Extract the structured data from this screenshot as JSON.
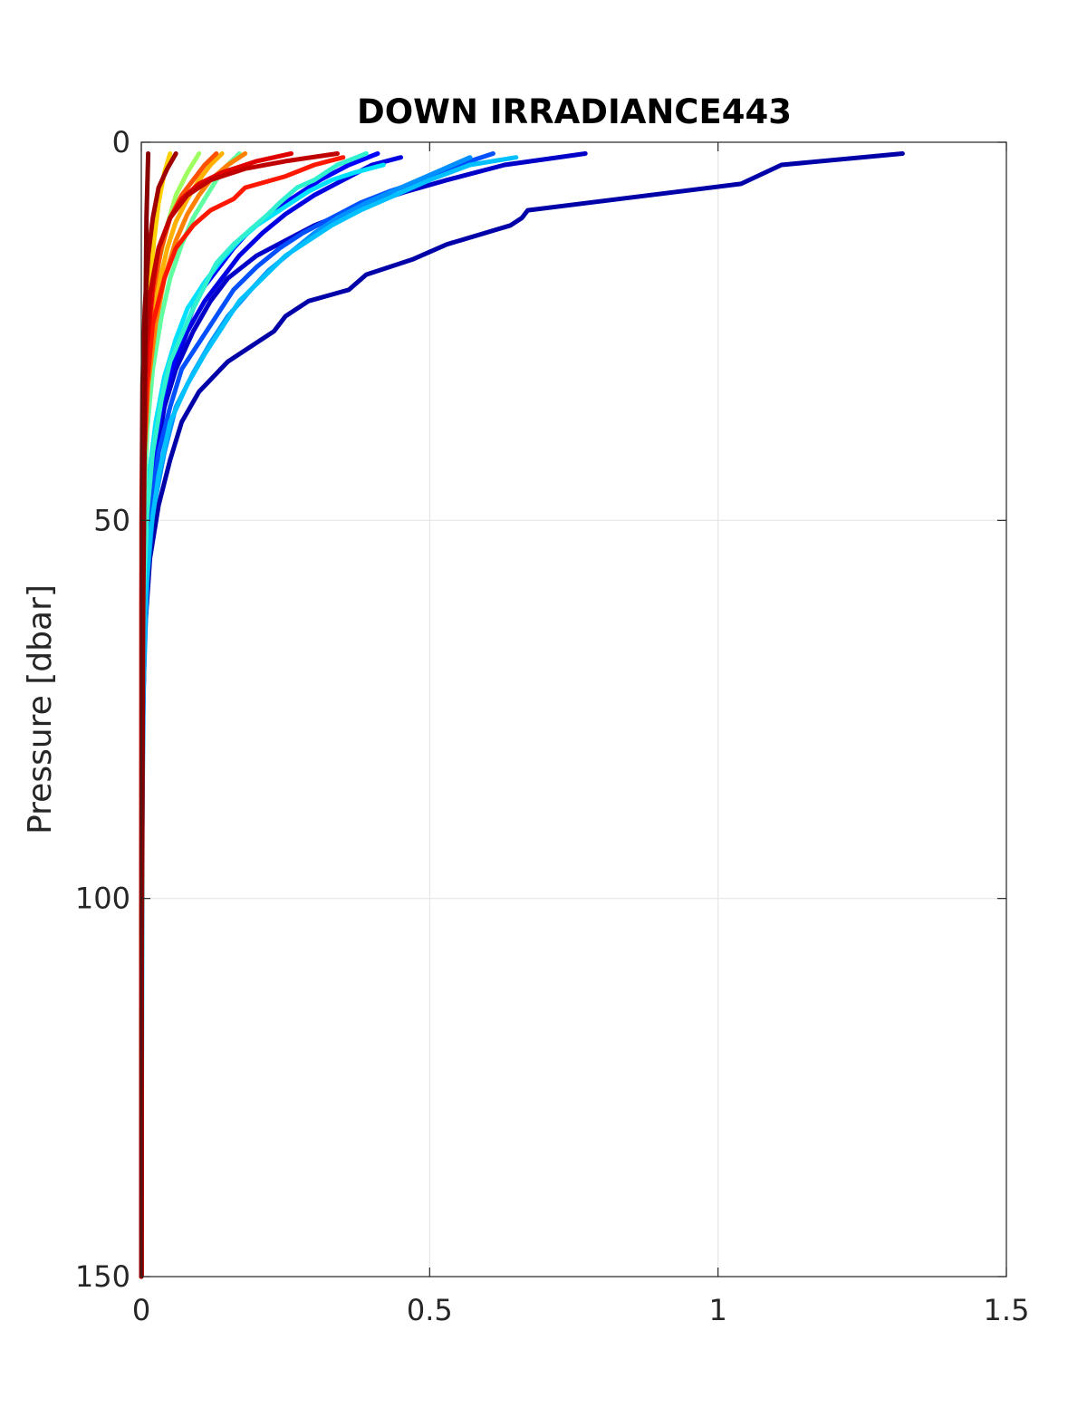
{
  "chart_data": {
    "type": "line",
    "title": "DOWN IRRADIANCE443",
    "xlabel": "",
    "ylabel": "Pressure [dbar]",
    "xlim": [
      0,
      1.5
    ],
    "ylim": [
      0,
      150
    ],
    "y_reversed": true,
    "grid": true,
    "xticks": [
      "0",
      "0.5",
      "1",
      "1.5"
    ],
    "yticks": [
      "0",
      "50",
      "100",
      "150"
    ],
    "xtick_values": [
      0,
      0.5,
      1,
      1.5
    ],
    "ytick_values": [
      0,
      50,
      100,
      150
    ],
    "series": [
      {
        "color": "#0000a8",
        "x": [
          1.32,
          1.11,
          1.04,
          0.67,
          0.66,
          0.64,
          0.53,
          0.47,
          0.39,
          0.36,
          0.29,
          0.25,
          0.23,
          0.15,
          0.1,
          0.07,
          0.05,
          0.03,
          0.015,
          0.006,
          0.002,
          0.0005,
          0.0001
        ],
        "y": [
          1.5,
          3,
          5.5,
          9,
          10,
          11,
          13.5,
          15.5,
          17.5,
          19.5,
          21,
          23,
          25,
          29,
          33,
          37,
          42,
          48,
          55,
          65,
          80,
          100,
          150
        ]
      },
      {
        "color": "#0000c8",
        "x": [
          0.77,
          0.63,
          0.53,
          0.46,
          0.4,
          0.35,
          0.3,
          0.25,
          0.2,
          0.15,
          0.12,
          0.09,
          0.06,
          0.04,
          0.025,
          0.012,
          0.005,
          0.002,
          0.0005,
          0.0001
        ],
        "y": [
          1.5,
          3,
          5,
          6.5,
          8,
          9.5,
          11,
          13,
          15,
          18,
          21,
          25,
          30,
          35,
          42,
          50,
          60,
          75,
          100,
          150
        ]
      },
      {
        "color": "#0000e0",
        "x": [
          0.45,
          0.4,
          0.35,
          0.3,
          0.25,
          0.21,
          0.17,
          0.14,
          0.11,
          0.08,
          0.06,
          0.04,
          0.025,
          0.012,
          0.005,
          0.002,
          0.0005,
          0.0001
        ],
        "y": [
          2,
          3,
          5,
          7,
          9.5,
          12,
          15,
          18,
          21,
          25,
          29,
          34,
          40,
          48,
          58,
          72,
          95,
          150
        ]
      },
      {
        "color": "#0000ff",
        "x": [
          0.41,
          0.36,
          0.31,
          0.27,
          0.23,
          0.19,
          0.16,
          0.13,
          0.1,
          0.08,
          0.06,
          0.04,
          0.025,
          0.012,
          0.005,
          0.002,
          0.0005,
          0.0001
        ],
        "y": [
          1.5,
          3,
          5,
          7,
          9,
          11.5,
          14,
          17,
          20,
          24,
          28,
          33,
          39,
          47,
          57,
          70,
          92,
          150
        ]
      },
      {
        "color": "#0050ff",
        "x": [
          0.61,
          0.55,
          0.49,
          0.43,
          0.38,
          0.33,
          0.28,
          0.24,
          0.2,
          0.16,
          0.13,
          0.1,
          0.07,
          0.05,
          0.03,
          0.015,
          0.006,
          0.002,
          0.0005,
          0.0001
        ],
        "y": [
          1.5,
          3,
          5,
          6.5,
          8,
          10,
          12,
          14,
          16.5,
          19.5,
          23,
          26.5,
          30,
          35,
          41,
          49,
          59,
          73,
          98,
          150
        ]
      },
      {
        "color": "#0090ff",
        "x": [
          0.57,
          0.51,
          0.45,
          0.39,
          0.34,
          0.3,
          0.26,
          0.22,
          0.19,
          0.15,
          0.12,
          0.09,
          0.06,
          0.04,
          0.02,
          0.01,
          0.004,
          0.001,
          0.0001
        ],
        "y": [
          2,
          4,
          6,
          8,
          10,
          12,
          14.5,
          17,
          19.5,
          23,
          26.5,
          30.5,
          35,
          41,
          49,
          58,
          72,
          96,
          150
        ]
      },
      {
        "color": "#00c0ff",
        "x": [
          0.65,
          0.57,
          0.5,
          0.44,
          0.38,
          0.33,
          0.29,
          0.25,
          0.21,
          0.17,
          0.14,
          0.11,
          0.08,
          0.05,
          0.03,
          0.015,
          0.006,
          0.002,
          0.0001
        ],
        "y": [
          2,
          3,
          5,
          7,
          9,
          11,
          13,
          15,
          18,
          21,
          24.5,
          28,
          32,
          37,
          44,
          52,
          62,
          78,
          150
        ]
      },
      {
        "color": "#00e0ff",
        "x": [
          0.42,
          0.37,
          0.33,
          0.29,
          0.26,
          0.23,
          0.2,
          0.17,
          0.14,
          0.11,
          0.08,
          0.06,
          0.04,
          0.025,
          0.012,
          0.005,
          0.002,
          0.0001
        ],
        "y": [
          3,
          4,
          5,
          6.5,
          8,
          9.5,
          11,
          13,
          15.5,
          18.5,
          22,
          26,
          31,
          37,
          45,
          55,
          70,
          150
        ]
      },
      {
        "color": "#30f0d0",
        "x": [
          0.39,
          0.34,
          0.3,
          0.27,
          0.24,
          0.22,
          0.19,
          0.16,
          0.13,
          0.11,
          0.09,
          0.07,
          0.05,
          0.035,
          0.02,
          0.01,
          0.004,
          0.001,
          0.0001
        ],
        "y": [
          1.5,
          3,
          5,
          6,
          8,
          9.5,
          11.5,
          13.5,
          16,
          19,
          22,
          25.5,
          29,
          34,
          41,
          49,
          60,
          78,
          150
        ]
      },
      {
        "color": "#60ffa0",
        "x": [
          0.17,
          0.15,
          0.13,
          0.11,
          0.09,
          0.07,
          0.05,
          0.035,
          0.02,
          0.01,
          0.004,
          0.001,
          0.0001
        ],
        "y": [
          1.5,
          3,
          5,
          7.5,
          10,
          13.5,
          18,
          23,
          30,
          38,
          50,
          70,
          150
        ]
      },
      {
        "color": "#a0ff60",
        "x": [
          0.1,
          0.08,
          0.06,
          0.045,
          0.03,
          0.02,
          0.01,
          0.004,
          0.001,
          0.0001
        ],
        "y": [
          1.5,
          4,
          7,
          11,
          16,
          22,
          30,
          42,
          65,
          150
        ]
      },
      {
        "color": "#ffd000",
        "x": [
          0.05,
          0.04,
          0.03,
          0.022,
          0.015,
          0.008,
          0.003,
          0.001,
          0.0001
        ],
        "y": [
          1.5,
          4,
          8,
          13,
          19,
          27,
          38,
          58,
          150
        ]
      },
      {
        "color": "#ffb000",
        "x": [
          0.14,
          0.12,
          0.1,
          0.08,
          0.06,
          0.045,
          0.03,
          0.018,
          0.008,
          0.003,
          0.001,
          0.0001
        ],
        "y": [
          1.5,
          3,
          5,
          7.5,
          10.5,
          14,
          19,
          25,
          33,
          44,
          62,
          150
        ]
      },
      {
        "color": "#ff8000",
        "x": [
          0.18,
          0.15,
          0.12,
          0.1,
          0.08,
          0.06,
          0.04,
          0.025,
          0.012,
          0.005,
          0.001,
          0.0001
        ],
        "y": [
          1.5,
          3,
          5,
          7,
          9.5,
          13,
          18,
          24,
          32,
          42,
          60,
          150
        ]
      },
      {
        "color": "#ff5000",
        "x": [
          0.13,
          0.11,
          0.09,
          0.07,
          0.05,
          0.035,
          0.02,
          0.01,
          0.004,
          0.001,
          0.0001
        ],
        "y": [
          1.5,
          3,
          5,
          7,
          10,
          14,
          20,
          28,
          38,
          55,
          150
        ]
      },
      {
        "color": "#ff1800",
        "x": [
          0.35,
          0.3,
          0.25,
          0.18,
          0.16,
          0.12,
          0.09,
          0.06,
          0.04,
          0.02,
          0.01,
          0.004,
          0.001,
          0.0001
        ],
        "y": [
          2,
          3,
          4.5,
          6,
          7.5,
          9,
          11,
          14,
          18,
          24,
          32,
          44,
          65,
          150
        ]
      },
      {
        "color": "#e00000",
        "x": [
          0.26,
          0.2,
          0.14,
          0.1,
          0.07,
          0.05,
          0.03,
          0.02,
          0.01,
          0.004,
          0.001,
          0.0001
        ],
        "y": [
          1.5,
          2.5,
          4,
          5.5,
          7.5,
          10,
          14,
          19,
          27,
          37,
          55,
          150
        ]
      },
      {
        "color": "#c00000",
        "x": [
          0.34,
          0.25,
          0.18,
          0.12,
          0.08,
          0.05,
          0.03,
          0.015,
          0.006,
          0.002,
          0.0005,
          0.0001
        ],
        "y": [
          1.5,
          2.5,
          3.5,
          5,
          7,
          10,
          14,
          20,
          28,
          40,
          60,
          150
        ]
      },
      {
        "color": "#a00000",
        "x": [
          0.06,
          0.045,
          0.03,
          0.02,
          0.012,
          0.006,
          0.002,
          0.0005,
          0.0001
        ],
        "y": [
          1.5,
          3.5,
          6,
          10,
          15,
          22,
          32,
          50,
          150
        ]
      },
      {
        "color": "#8a0000",
        "x": [
          0.012,
          0.009,
          0.007,
          0.005,
          0.003,
          0.002,
          0.001,
          0.0003,
          0.0001
        ],
        "y": [
          1.5,
          10,
          25,
          45,
          65,
          85,
          105,
          130,
          150
        ]
      }
    ]
  }
}
